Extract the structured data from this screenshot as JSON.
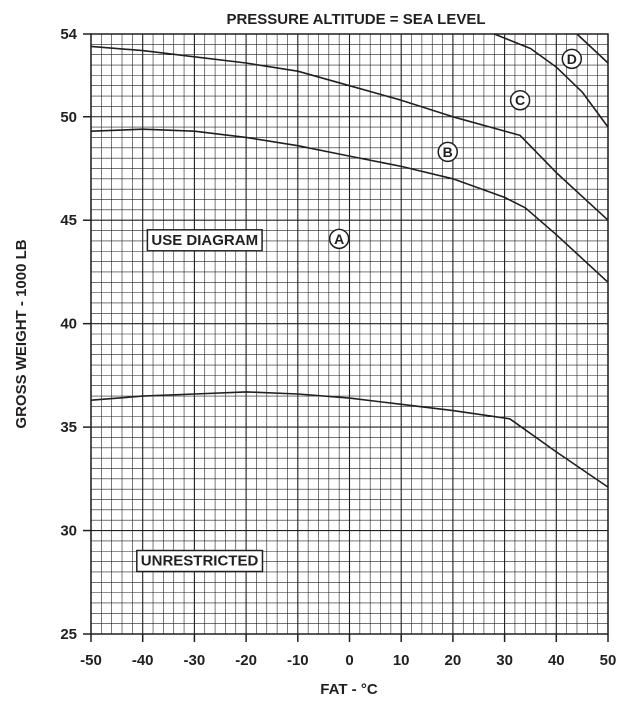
{
  "chart_data": {
    "type": "line",
    "title": "PRESSURE ALTITUDE = SEA LEVEL",
    "xlabel": "FAT - °C",
    "ylabel": "GROSS WEIGHT - 1000 LB",
    "xlim": [
      -50,
      50
    ],
    "ylim": [
      25,
      54
    ],
    "x_ticks": [
      -50,
      -40,
      -30,
      -20,
      -10,
      0,
      10,
      20,
      30,
      40,
      50
    ],
    "y_ticks": [
      25,
      30,
      35,
      40,
      45,
      50,
      54
    ],
    "x_tick_labels": [
      "-50",
      "-40",
      "-30",
      "-20",
      "-10",
      "0",
      "10",
      "20",
      "30",
      "40",
      "50"
    ],
    "y_tick_labels": [
      "25",
      "30",
      "35",
      "40",
      "45",
      "50",
      "54"
    ],
    "grid": true,
    "series": [
      {
        "name": "",
        "points": [
          [
            -50,
            36.3
          ],
          [
            -40,
            36.5
          ],
          [
            -30,
            36.6
          ],
          [
            -20,
            36.7
          ],
          [
            -10,
            36.6
          ],
          [
            0,
            36.4
          ],
          [
            10,
            36.1
          ],
          [
            20,
            35.8
          ],
          [
            31,
            35.4
          ],
          [
            40,
            33.8
          ],
          [
            50,
            32.1
          ]
        ]
      },
      {
        "name": "",
        "points": [
          [
            -50,
            49.3
          ],
          [
            -40,
            49.4
          ],
          [
            -30,
            49.3
          ],
          [
            -20,
            49.0
          ],
          [
            -10,
            48.6
          ],
          [
            0,
            48.1
          ],
          [
            10,
            47.6
          ],
          [
            20,
            47.0
          ],
          [
            30,
            46.1
          ],
          [
            34,
            45.6
          ],
          [
            40,
            44.3
          ],
          [
            50,
            42.0
          ]
        ]
      },
      {
        "name": "",
        "points": [
          [
            -50,
            53.4
          ],
          [
            -40,
            53.2
          ],
          [
            -30,
            52.9
          ],
          [
            -20,
            52.6
          ],
          [
            -10,
            52.2
          ],
          [
            0,
            51.5
          ],
          [
            10,
            50.8
          ],
          [
            20,
            50.0
          ],
          [
            33,
            49.1
          ],
          [
            40,
            47.3
          ],
          [
            50,
            45.0
          ]
        ]
      },
      {
        "name": "",
        "points": [
          [
            28,
            54.0
          ],
          [
            35,
            53.3
          ],
          [
            40,
            52.4
          ],
          [
            45,
            51.2
          ],
          [
            50,
            49.5
          ]
        ]
      },
      {
        "name": "",
        "points": [
          [
            44,
            54.0
          ],
          [
            47,
            53.3
          ],
          [
            50,
            52.6
          ]
        ]
      }
    ],
    "annotations": [
      {
        "text": "USE DIAGRAM",
        "boxed": true,
        "x": -28,
        "y": 44.1
      },
      {
        "text": "UNRESTRICTED",
        "boxed": true,
        "x": -29,
        "y": 28.6
      }
    ],
    "markers": [
      {
        "text": "A",
        "x": -2,
        "y": 44.1
      },
      {
        "text": "B",
        "x": 19,
        "y": 48.3
      },
      {
        "text": "C",
        "x": 33,
        "y": 50.8
      },
      {
        "text": "D",
        "x": 43,
        "y": 52.8
      }
    ]
  }
}
